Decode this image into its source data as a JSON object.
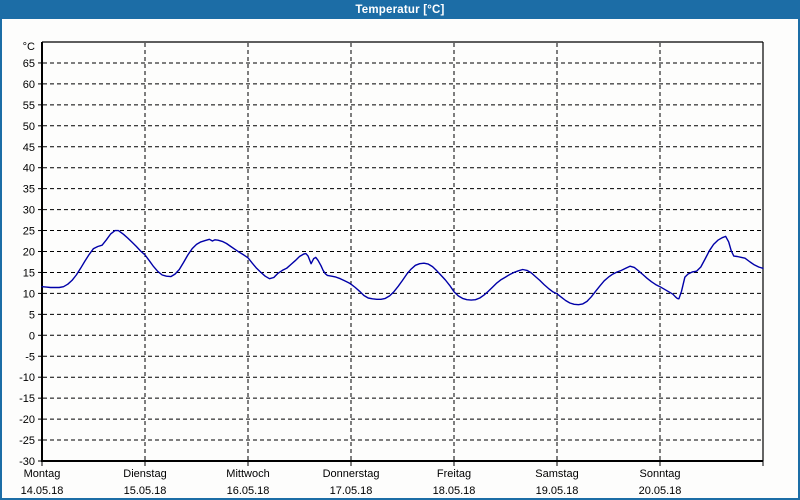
{
  "window": {
    "title": "Temperatur [°C]",
    "titlebar_color": "#1c6da6",
    "border_color": "#1c6da6",
    "background": "#fdfdfc"
  },
  "chart_data": {
    "type": "line",
    "title": "Temperatur [°C]",
    "ylabel": "°C",
    "xlabel": "",
    "grid": "dashed",
    "legend_position": "none",
    "line_color": "#0000a8",
    "y_axis": {
      "min": -30,
      "max": 70,
      "tick_step": 5,
      "labeled_ticks": [
        65,
        60,
        55,
        50,
        45,
        40,
        35,
        30,
        25,
        20,
        15,
        10,
        5,
        0,
        -5,
        -10,
        -15,
        -20,
        -25,
        -30
      ],
      "unit": "°C"
    },
    "x_axis": {
      "span_hours": 168,
      "days": [
        {
          "name": "Montag",
          "date": "14.05.18"
        },
        {
          "name": "Dienstag",
          "date": "15.05.18"
        },
        {
          "name": "Mittwoch",
          "date": "16.05.18"
        },
        {
          "name": "Donnerstag",
          "date": "17.05.18"
        },
        {
          "name": "Freitag",
          "date": "18.05.18"
        },
        {
          "name": "Samstag",
          "date": "19.05.18"
        },
        {
          "name": "Sonntag",
          "date": "20.05.18"
        }
      ]
    },
    "series": [
      {
        "name": "Temperatur",
        "unit": "°C",
        "x_unit": "hours_since_monday_00:00",
        "points": [
          [
            0,
            11.6
          ],
          [
            1,
            11.5
          ],
          [
            2,
            11.4
          ],
          [
            3,
            11.4
          ],
          [
            4,
            11.4
          ],
          [
            5,
            11.6
          ],
          [
            6,
            12.2
          ],
          [
            7,
            13.1
          ],
          [
            8,
            14.4
          ],
          [
            9,
            16.0
          ],
          [
            10,
            17.7
          ],
          [
            11,
            19.3
          ],
          [
            12,
            20.7
          ],
          [
            13,
            21.2
          ],
          [
            14,
            21.5
          ],
          [
            15,
            22.8
          ],
          [
            16,
            24.2
          ],
          [
            17,
            25.0
          ],
          [
            17.8,
            25.0
          ],
          [
            19,
            24.1
          ],
          [
            20,
            23.2
          ],
          [
            21,
            22.2
          ],
          [
            22,
            21.2
          ],
          [
            23,
            20.1
          ],
          [
            24,
            19.2
          ],
          [
            25,
            17.8
          ],
          [
            26,
            16.4
          ],
          [
            27,
            15.2
          ],
          [
            28,
            14.4
          ],
          [
            29,
            14.1
          ],
          [
            30,
            14.0
          ],
          [
            31,
            14.6
          ],
          [
            32,
            15.7
          ],
          [
            33,
            17.4
          ],
          [
            34,
            19.2
          ],
          [
            35,
            20.7
          ],
          [
            36,
            21.7
          ],
          [
            37,
            22.3
          ],
          [
            38,
            22.6
          ],
          [
            39,
            22.9
          ],
          [
            39.7,
            22.5
          ],
          [
            40.3,
            22.8
          ],
          [
            41,
            22.7
          ],
          [
            42,
            22.4
          ],
          [
            43,
            21.9
          ],
          [
            44,
            21.2
          ],
          [
            45,
            20.5
          ],
          [
            46,
            19.8
          ],
          [
            47,
            19.2
          ],
          [
            48,
            18.5
          ],
          [
            49,
            17.2
          ],
          [
            50,
            16.0
          ],
          [
            51,
            15.0
          ],
          [
            52,
            14.1
          ],
          [
            53,
            13.5
          ],
          [
            54,
            13.8
          ],
          [
            55,
            14.8
          ],
          [
            56,
            15.5
          ],
          [
            57,
            16.0
          ],
          [
            58,
            16.9
          ],
          [
            59,
            17.8
          ],
          [
            60,
            18.8
          ],
          [
            61,
            19.4
          ],
          [
            61.5,
            19.5
          ],
          [
            62,
            18.9
          ],
          [
            62.7,
            17.1
          ],
          [
            63.3,
            18.3
          ],
          [
            63.8,
            18.6
          ],
          [
            64.3,
            17.9
          ],
          [
            65,
            16.6
          ],
          [
            65.5,
            15.5
          ],
          [
            66,
            14.7
          ],
          [
            66.5,
            14.3
          ],
          [
            67.5,
            14.1
          ],
          [
            68.5,
            13.9
          ],
          [
            69.5,
            13.5
          ],
          [
            70.5,
            13.0
          ],
          [
            71.5,
            12.5
          ],
          [
            72,
            12.2
          ],
          [
            73,
            11.4
          ],
          [
            74,
            10.5
          ],
          [
            75,
            9.5
          ],
          [
            76,
            8.9
          ],
          [
            77,
            8.7
          ],
          [
            78,
            8.6
          ],
          [
            79,
            8.6
          ],
          [
            80,
            8.8
          ],
          [
            81,
            9.4
          ],
          [
            82,
            10.4
          ],
          [
            83,
            11.7
          ],
          [
            84,
            13.1
          ],
          [
            85,
            14.6
          ],
          [
            86,
            15.8
          ],
          [
            87,
            16.7
          ],
          [
            88,
            17.1
          ],
          [
            89,
            17.2
          ],
          [
            90,
            17.0
          ],
          [
            91,
            16.4
          ],
          [
            92,
            15.4
          ],
          [
            93,
            14.3
          ],
          [
            94,
            13.2
          ],
          [
            95,
            11.9
          ],
          [
            96,
            10.4
          ],
          [
            97,
            9.4
          ],
          [
            98,
            8.8
          ],
          [
            99,
            8.5
          ],
          [
            100,
            8.4
          ],
          [
            101,
            8.5
          ],
          [
            102,
            8.9
          ],
          [
            103,
            9.6
          ],
          [
            104,
            10.5
          ],
          [
            105,
            11.5
          ],
          [
            106,
            12.5
          ],
          [
            107,
            13.3
          ],
          [
            108,
            13.9
          ],
          [
            109,
            14.5
          ],
          [
            110,
            15.0
          ],
          [
            111,
            15.4
          ],
          [
            112,
            15.7
          ],
          [
            113,
            15.5
          ],
          [
            114,
            14.9
          ],
          [
            115,
            14.0
          ],
          [
            116,
            13.1
          ],
          [
            117,
            12.1
          ],
          [
            118,
            11.2
          ],
          [
            119,
            10.4
          ],
          [
            120,
            9.9
          ],
          [
            121,
            9.1
          ],
          [
            122,
            8.3
          ],
          [
            123,
            7.7
          ],
          [
            124,
            7.4
          ],
          [
            125,
            7.3
          ],
          [
            126,
            7.5
          ],
          [
            127,
            8.1
          ],
          [
            128,
            9.2
          ],
          [
            129,
            10.5
          ],
          [
            130,
            11.8
          ],
          [
            131,
            13.0
          ],
          [
            132,
            13.9
          ],
          [
            133,
            14.6
          ],
          [
            134,
            15.1
          ],
          [
            135,
            15.5
          ],
          [
            136,
            16.0
          ],
          [
            137,
            16.5
          ],
          [
            138,
            16.2
          ],
          [
            139,
            15.4
          ],
          [
            140,
            14.5
          ],
          [
            141,
            13.6
          ],
          [
            142,
            12.8
          ],
          [
            143,
            12.1
          ],
          [
            144,
            11.6
          ],
          [
            145,
            11.0
          ],
          [
            146,
            10.4
          ],
          [
            147,
            9.8
          ],
          [
            147.6,
            9.2
          ],
          [
            148,
            8.8
          ],
          [
            148.4,
            8.7
          ],
          [
            149,
            10.5
          ],
          [
            149.8,
            13.9
          ],
          [
            150.5,
            14.6
          ],
          [
            151.5,
            15.1
          ],
          [
            152.5,
            15.3
          ],
          [
            153.5,
            16.3
          ],
          [
            154.5,
            18.2
          ],
          [
            155.5,
            20.2
          ],
          [
            156.5,
            21.7
          ],
          [
            157.5,
            22.7
          ],
          [
            158.5,
            23.3
          ],
          [
            159.3,
            23.6
          ],
          [
            160,
            22.3
          ],
          [
            160.6,
            20.2
          ],
          [
            161.2,
            18.9
          ],
          [
            162,
            18.8
          ],
          [
            163,
            18.6
          ],
          [
            163.8,
            18.4
          ],
          [
            165,
            17.5
          ],
          [
            166,
            16.8
          ],
          [
            167,
            16.3
          ],
          [
            168,
            16.0
          ]
        ]
      }
    ]
  }
}
